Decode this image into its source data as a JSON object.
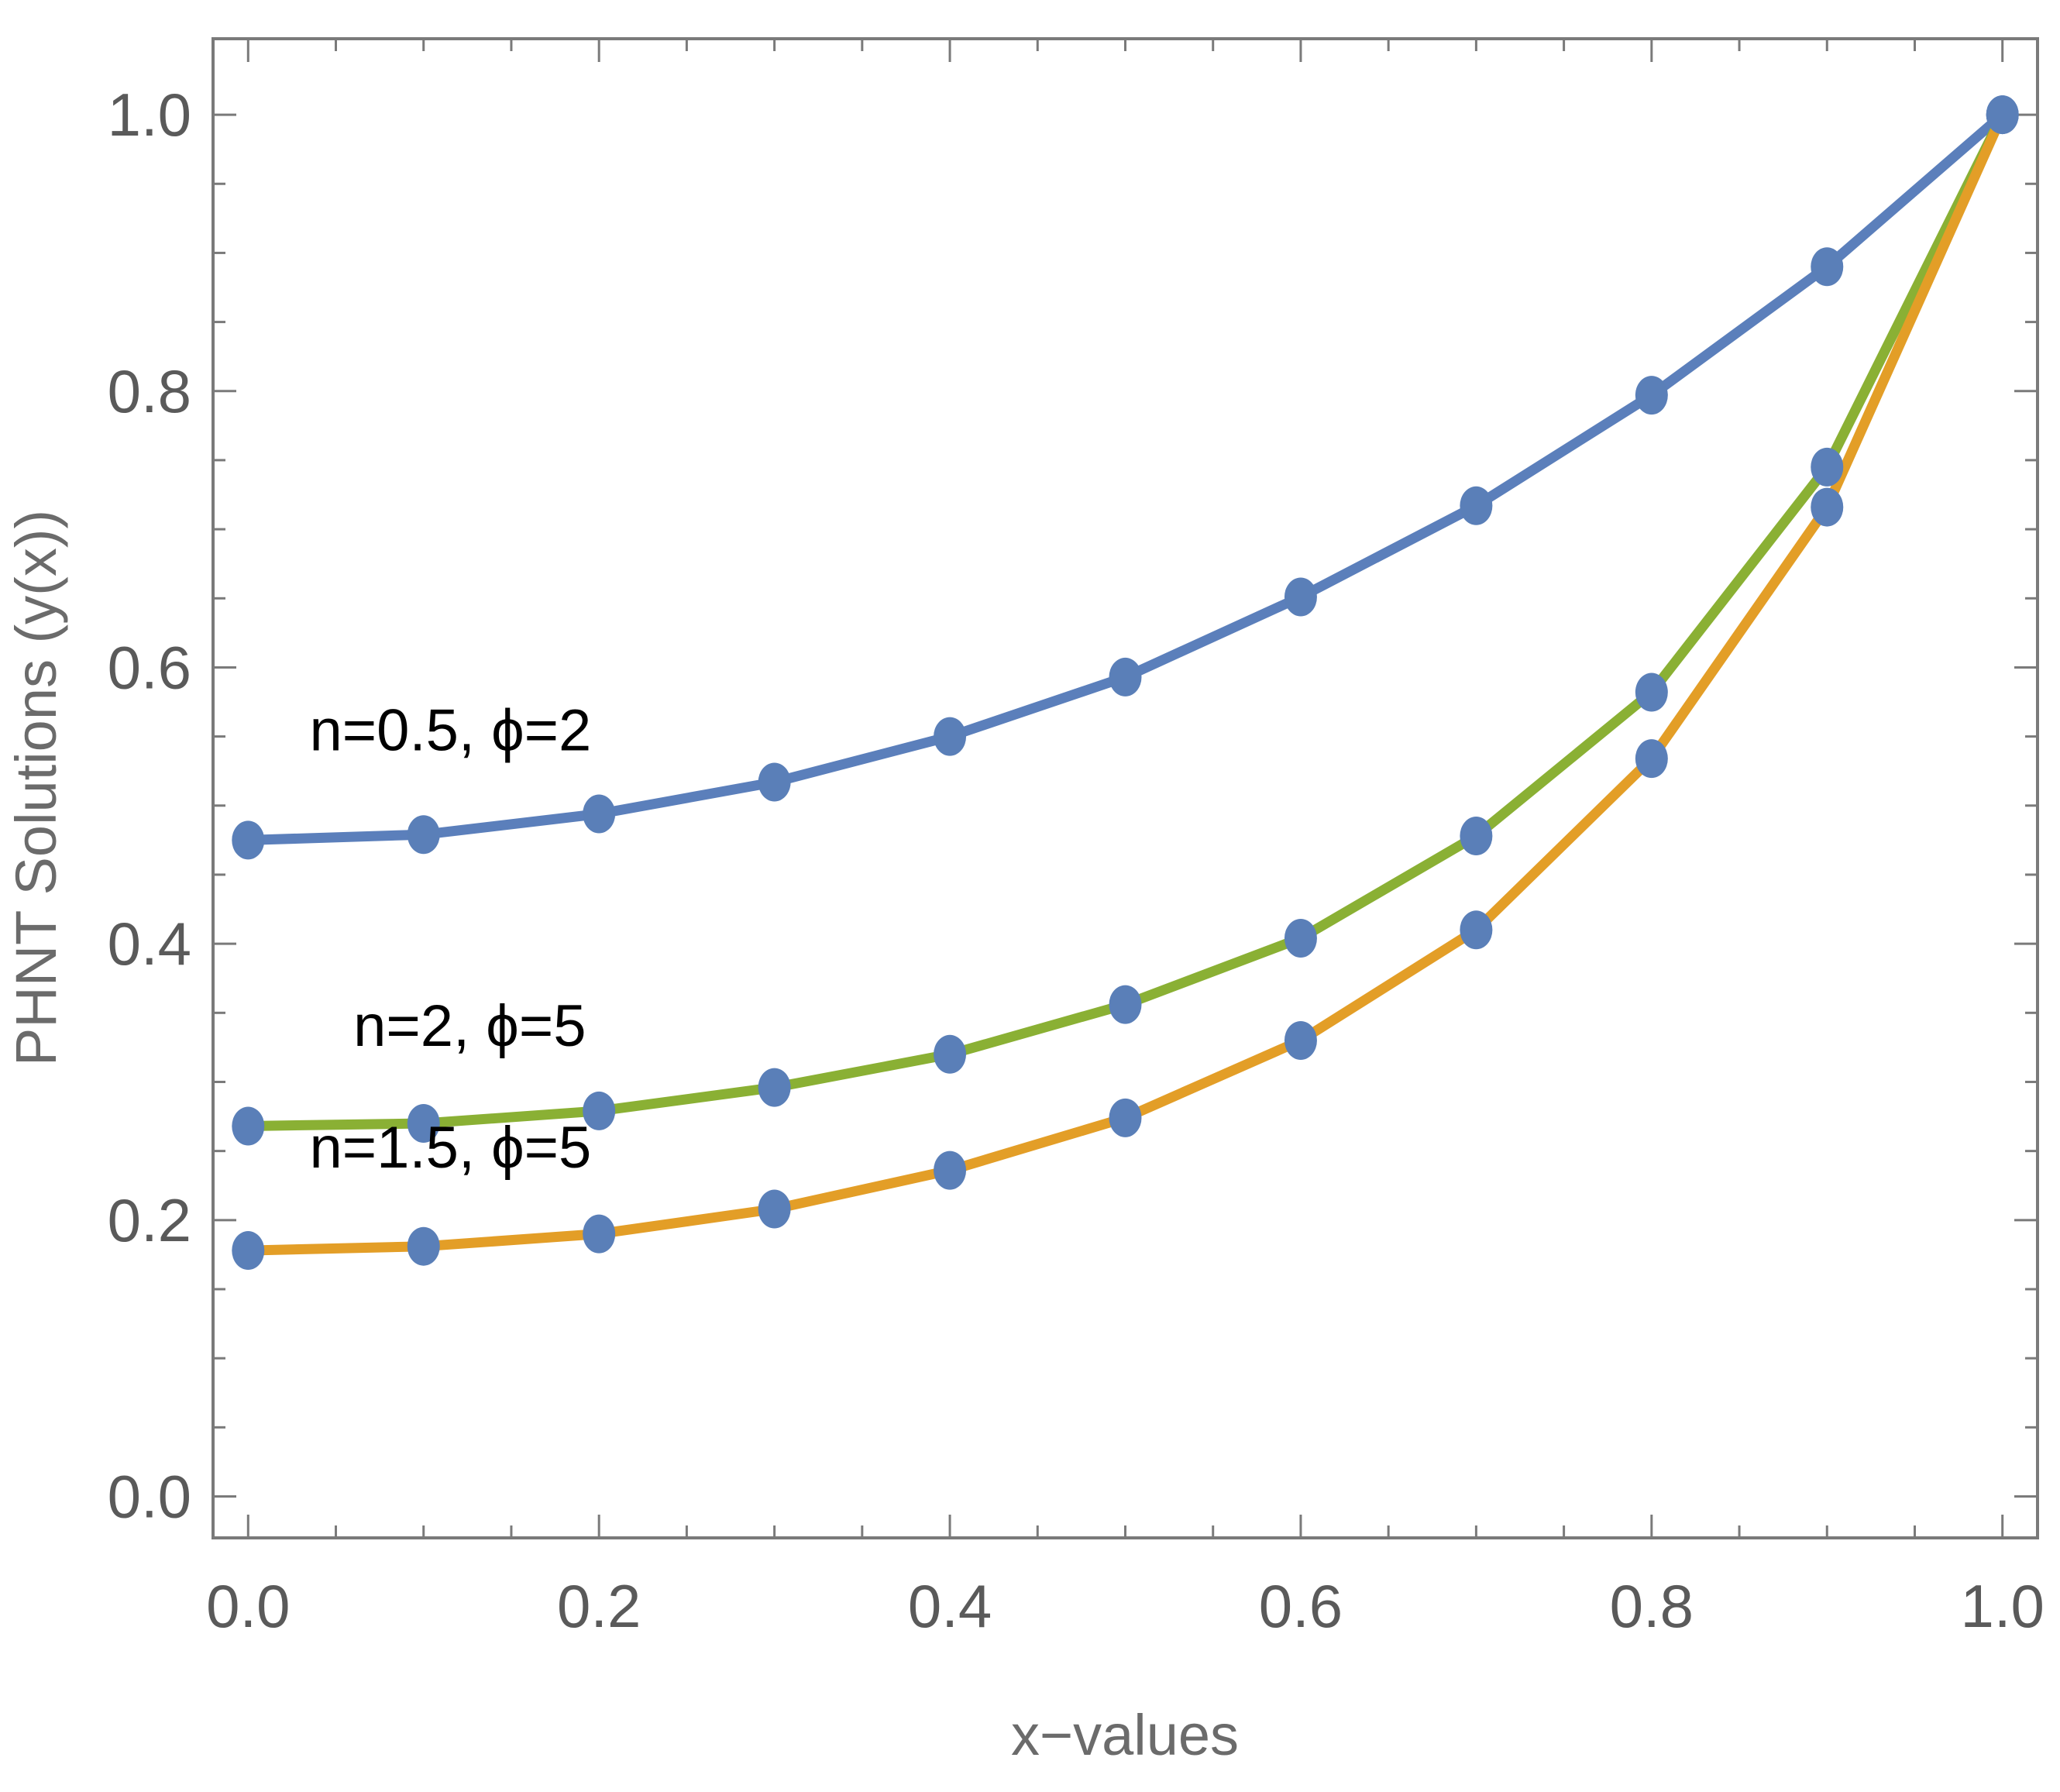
{
  "chart_data": {
    "type": "line",
    "xlabel": "x−values",
    "ylabel": "PHNT Solutions (y(x))",
    "xlim": [
      -0.02,
      1.02
    ],
    "ylim": [
      -0.03,
      1.055
    ],
    "x_ticks": [
      "0.0",
      "0.2",
      "0.4",
      "0.6",
      "0.8",
      "1.0"
    ],
    "y_ticks": [
      "0.0",
      "0.2",
      "0.4",
      "0.6",
      "0.8",
      "1.0"
    ],
    "x": [
      0.0,
      0.1,
      0.2,
      0.3,
      0.4,
      0.5,
      0.6,
      0.7,
      0.8,
      0.9,
      1.0
    ],
    "marker_color": "#5a7fb8",
    "series": [
      {
        "name": "n=0.5, ϕ=2",
        "color": "#5b7fbb",
        "values": [
          0.475,
          0.479,
          0.494,
          0.517,
          0.55,
          0.593,
          0.651,
          0.717,
          0.797,
          0.89,
          1.0
        ]
      },
      {
        "name": "n=2, ϕ=5",
        "color": "#8ab034",
        "values": [
          0.268,
          0.27,
          0.279,
          0.296,
          0.32,
          0.356,
          0.404,
          0.478,
          0.582,
          0.745,
          1.0
        ]
      },
      {
        "name": "n=1.5, ϕ=5",
        "color": "#e39e27",
        "values": [
          0.178,
          0.181,
          0.19,
          0.208,
          0.236,
          0.274,
          0.33,
          0.41,
          0.534,
          0.716,
          1.0
        ]
      }
    ],
    "annotations": [
      {
        "text": "n=0.5, ϕ=2",
        "series": 0
      },
      {
        "text": "n=2, ϕ=5",
        "series": 1
      },
      {
        "text": "n=1.5, ϕ=5",
        "series": 2
      }
    ],
    "grid": false
  }
}
